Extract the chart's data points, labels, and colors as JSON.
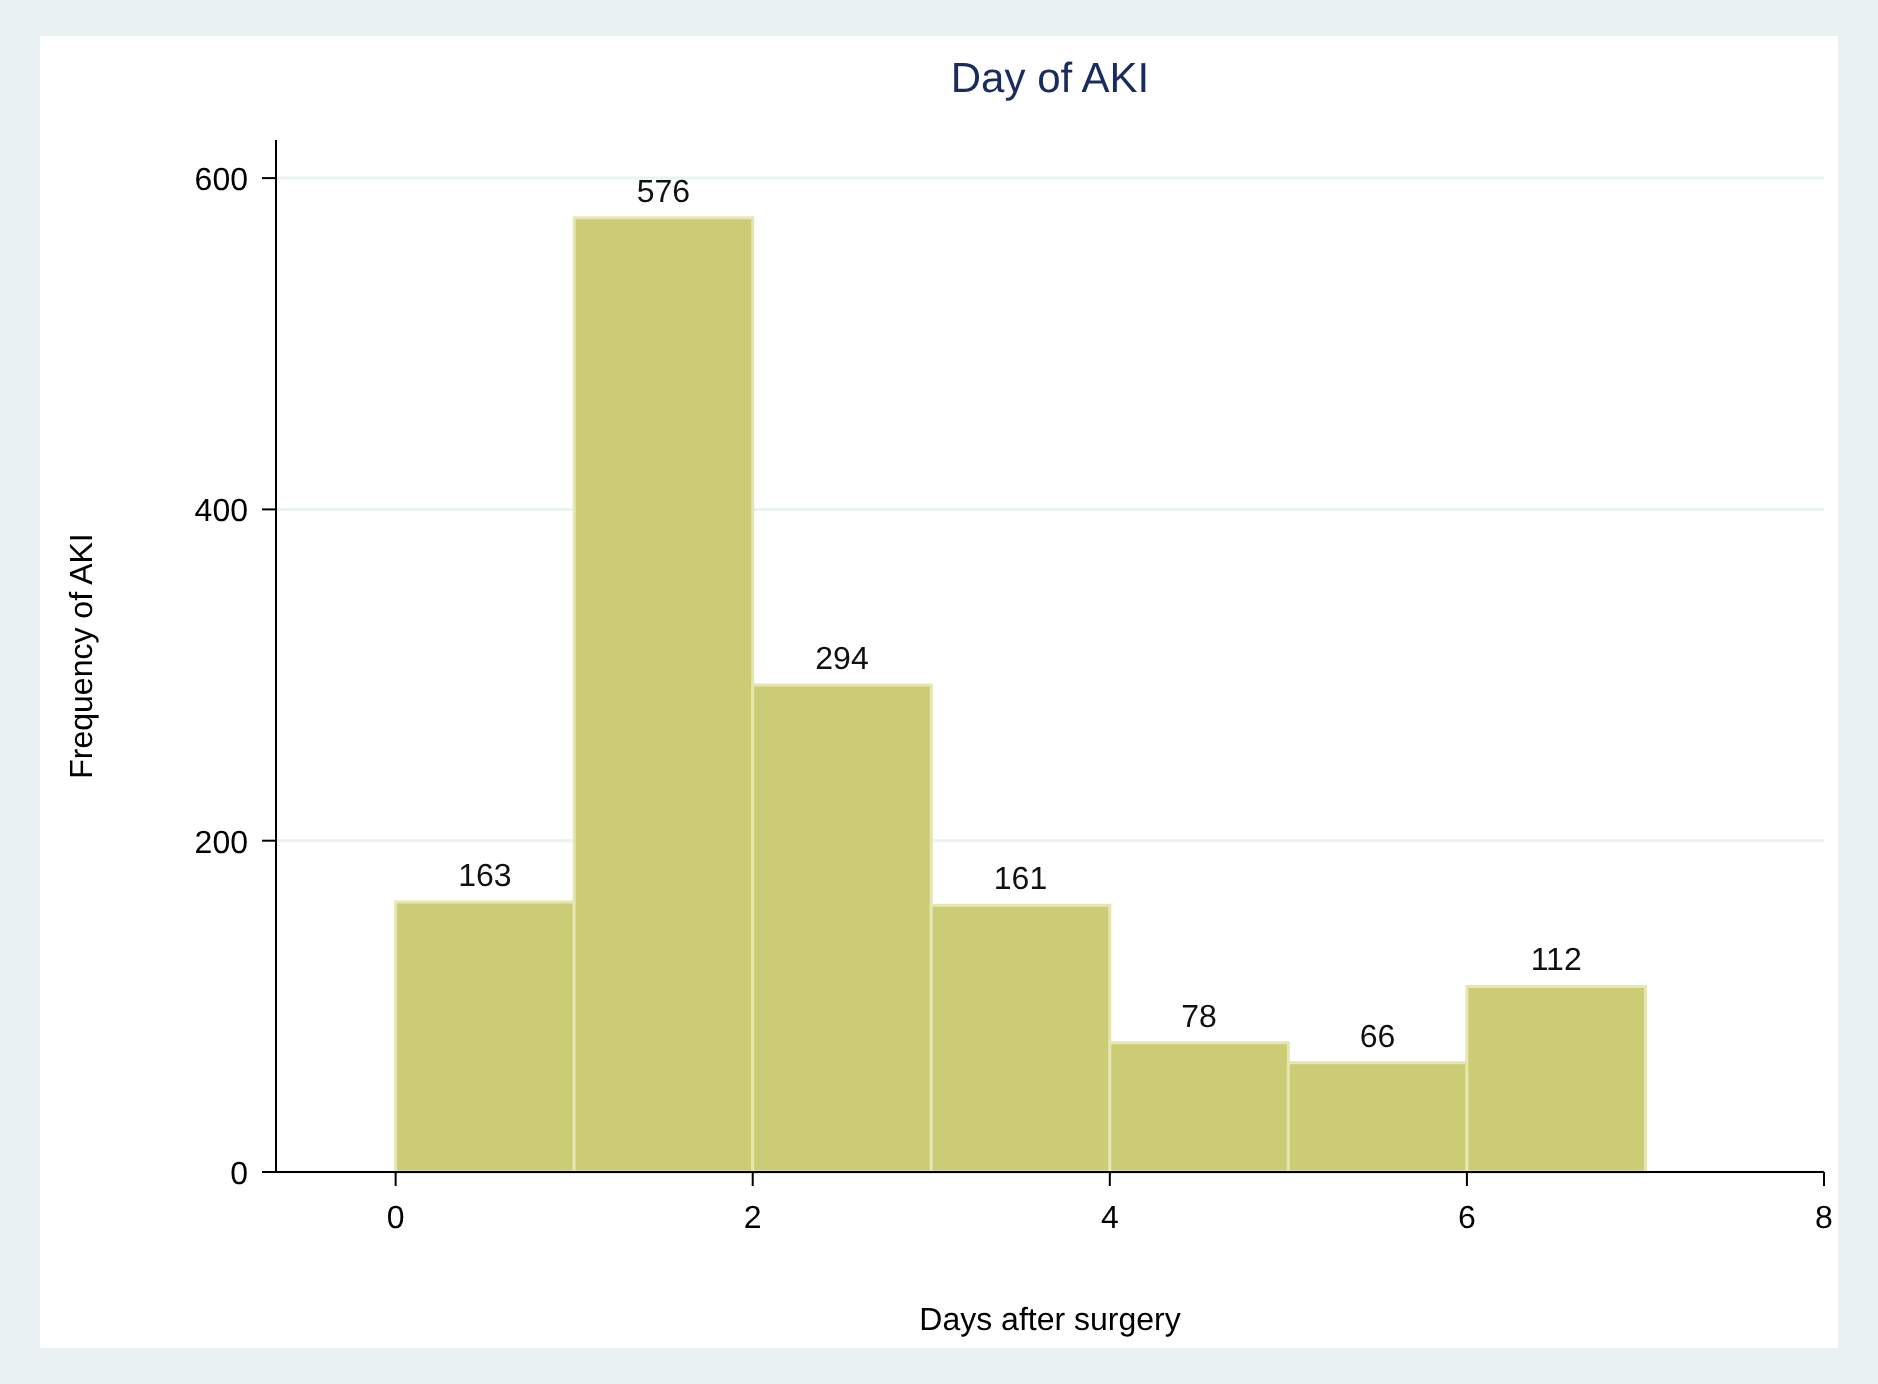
{
  "chart_data": {
    "type": "histogram",
    "title": "Day of AKI",
    "xlabel": "Days after surgery",
    "ylabel": "Frequency of AKI",
    "bins": [
      0,
      1,
      2,
      3,
      4,
      5,
      6,
      7
    ],
    "values": [
      163,
      576,
      294,
      161,
      78,
      66,
      112
    ],
    "color": "#cccc77",
    "data_labels": true,
    "xlim": [
      -0.67,
      8
    ],
    "xticks": [
      0,
      2,
      4,
      6,
      8
    ],
    "ylim": [
      0,
      623
    ],
    "yticks": [
      0,
      200,
      400,
      600
    ],
    "grid": "y"
  }
}
